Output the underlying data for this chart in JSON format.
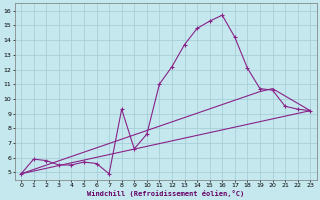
{
  "xlabel": "Windchill (Refroidissement éolien,°C)",
  "xlim": [
    -0.5,
    23.5
  ],
  "ylim": [
    4.5,
    16.5
  ],
  "xticks": [
    0,
    1,
    2,
    3,
    4,
    5,
    6,
    7,
    8,
    9,
    10,
    11,
    12,
    13,
    14,
    15,
    16,
    17,
    18,
    19,
    20,
    21,
    22,
    23
  ],
  "yticks": [
    5,
    6,
    7,
    8,
    9,
    10,
    11,
    12,
    13,
    14,
    15,
    16
  ],
  "bg_color": "#c5e8ee",
  "grid_color": "#a8cfd8",
  "line_color": "#882288",
  "lines": [
    {
      "x": [
        0,
        1,
        2,
        3,
        4,
        5,
        6,
        7,
        8,
        9,
        10,
        11,
        12,
        13,
        14,
        15,
        16,
        17,
        18,
        19,
        20,
        21,
        22,
        23
      ],
      "y": [
        4.9,
        5.9,
        5.8,
        5.5,
        5.5,
        5.7,
        5.6,
        4.9,
        9.3,
        6.6,
        7.6,
        11.0,
        12.2,
        13.7,
        14.8,
        15.3,
        15.7,
        14.2,
        12.1,
        10.7,
        10.6,
        9.5,
        9.3,
        9.2
      ]
    },
    {
      "x": [
        0,
        23
      ],
      "y": [
        4.9,
        9.2
      ]
    },
    {
      "x": [
        0,
        19,
        20,
        23
      ],
      "y": [
        4.9,
        10.5,
        10.7,
        9.2
      ]
    }
  ]
}
